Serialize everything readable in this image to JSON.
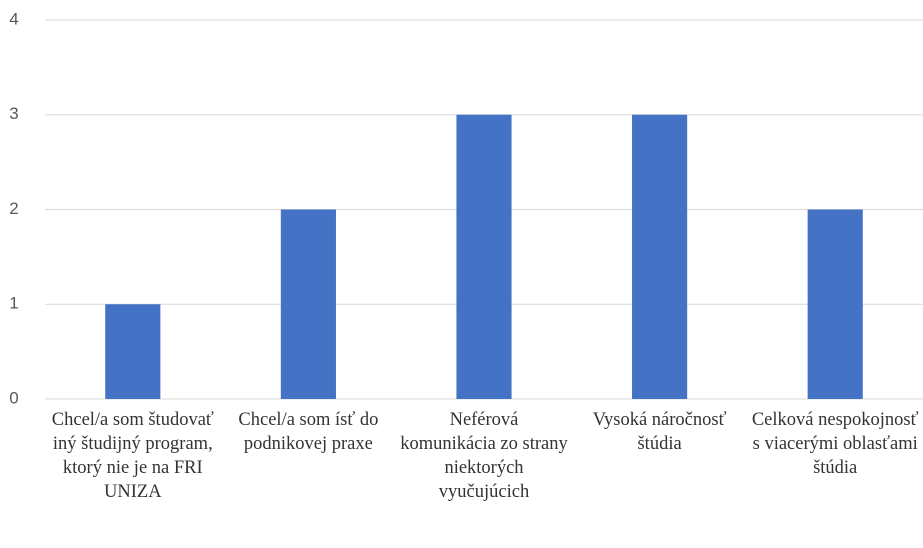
{
  "chart_data": {
    "type": "bar",
    "categories": [
      "Chcel/a som študovať iný študijný program, ktorý nie je na FRI UNIZA",
      "Chcel/a som ísť do podnikovej praxe",
      "Neférová komunikácia zo strany niektorých vyučujúcich",
      "Vysoká náročnosť štúdia",
      "Celková nespokojnosť s viacerými oblasťami štúdia"
    ],
    "values": [
      1,
      2,
      3,
      3,
      2
    ],
    "color": "#4472c4",
    "ylim": [
      0,
      4
    ],
    "yticks": [
      0,
      1,
      2,
      3,
      4
    ],
    "grid": true
  }
}
